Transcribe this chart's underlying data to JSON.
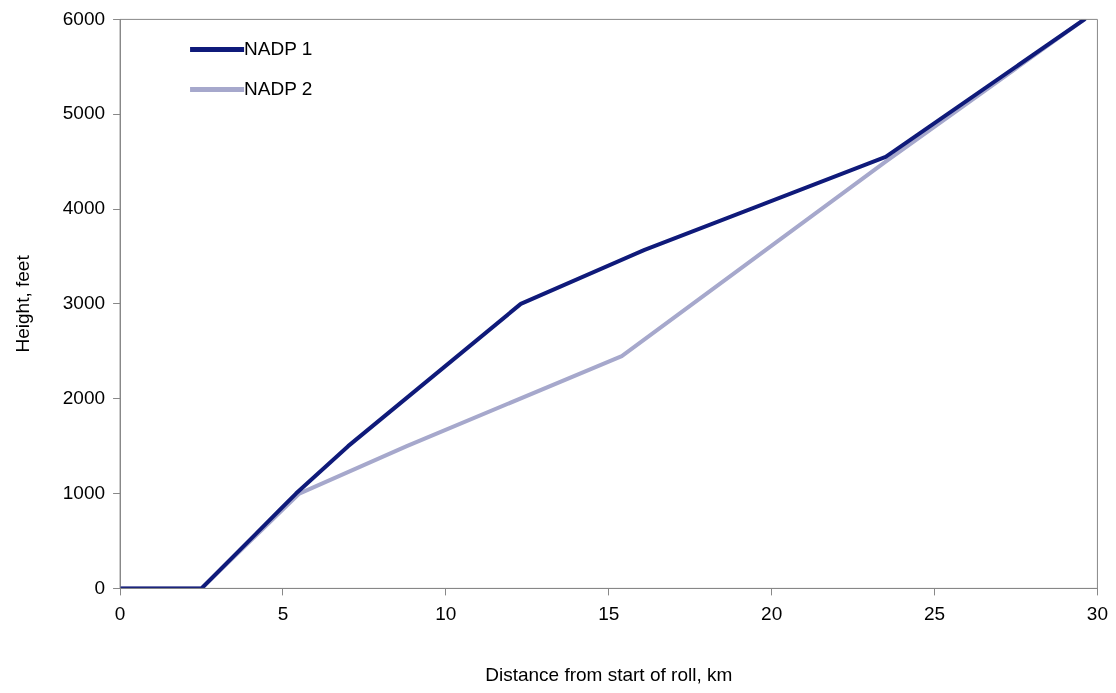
{
  "chart_data": {
    "type": "line",
    "xlabel": "Distance from start of roll, km",
    "ylabel": "Height, feet",
    "series": [
      {
        "name": "NADP 1",
        "color": "#0f1a7a",
        "x": [
          0,
          2.5,
          5.4,
          7.0,
          12.3,
          16.1,
          23.5,
          29.6
        ],
        "values": [
          0,
          0,
          1000,
          1500,
          3000,
          3570,
          4550,
          6000
        ]
      },
      {
        "name": "NADP 2",
        "color": "#a6a8cc",
        "x": [
          0,
          2.5,
          5.5,
          8.8,
          15.4,
          23.5,
          29.6
        ],
        "values": [
          0,
          0,
          1000,
          1500,
          2450,
          4500,
          6000
        ]
      }
    ],
    "xlim": [
      0,
      30
    ],
    "xticks": [
      0,
      5,
      10,
      15,
      20,
      25,
      30
    ],
    "ylim": [
      0,
      6000
    ],
    "yticks": [
      0,
      1000,
      2000,
      3000,
      4000,
      5000,
      6000
    ],
    "grid": false,
    "legend": "top left",
    "marker": "none",
    "line_style": "solid"
  }
}
